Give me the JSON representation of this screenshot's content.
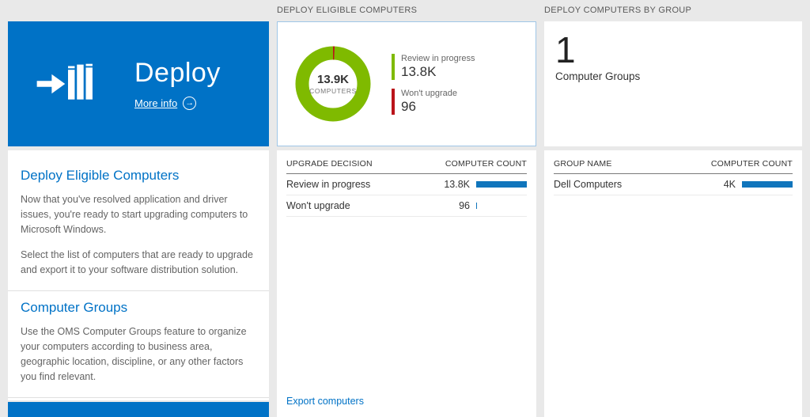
{
  "colors": {
    "accent_blue": "#0072c6",
    "bar_blue": "#1075bc",
    "green": "#7fba00",
    "red": "#ba141a",
    "page_bg": "#e9e9e9"
  },
  "icons": {
    "more_info_arrow": "→"
  },
  "left_tile": {
    "title": "Deploy",
    "more_info": "More info",
    "sections": [
      {
        "heading": "Deploy Eligible Computers",
        "paragraphs": [
          "Now that you've resolved application and driver issues, you're ready to start upgrading computers to Microsoft Windows.",
          "Select the list of computers that are ready to upgrade and export it to your software distribution solution."
        ]
      },
      {
        "heading": "Computer Groups",
        "paragraphs": [
          "Use the OMS Computer Groups feature to organize your computers according to business area, geographic location, discipline, or any other factors you find relevant."
        ]
      }
    ]
  },
  "eligible": {
    "header": "DEPLOY ELIGIBLE COMPUTERS",
    "donut": {
      "center_value": "13.9K",
      "center_label": "COMPUTERS"
    },
    "legend": [
      {
        "label": "Review in progress",
        "value": "13.8K",
        "color": "#7fba00"
      },
      {
        "label": "Won't upgrade",
        "value": "96",
        "color": "#ba141a"
      }
    ],
    "table": {
      "columns": [
        "UPGRADE DECISION",
        "COMPUTER COUNT"
      ],
      "rows": [
        {
          "label": "Review in progress",
          "value": "13.8K",
          "bar_pct": 100
        },
        {
          "label": "Won't upgrade",
          "value": "96",
          "bar_pct": 2
        }
      ]
    },
    "export_link": "Export computers"
  },
  "groups": {
    "header": "DEPLOY COMPUTERS BY GROUP",
    "count": "1",
    "count_label": "Computer Groups",
    "table": {
      "columns": [
        "GROUP NAME",
        "COMPUTER COUNT"
      ],
      "rows": [
        {
          "label": "Dell Computers",
          "value": "4K",
          "bar_pct": 100
        }
      ]
    }
  },
  "chart_data": {
    "type": "pie",
    "title": "Deploy Eligible Computers",
    "center_value": "13.9K",
    "center_label": "COMPUTERS",
    "slices": [
      {
        "label": "Review in progress",
        "value": 13800,
        "display": "13.8K",
        "color": "#7fba00"
      },
      {
        "label": "Won't upgrade",
        "value": 96,
        "display": "96",
        "color": "#ba141a"
      }
    ],
    "legend_position": "right"
  }
}
